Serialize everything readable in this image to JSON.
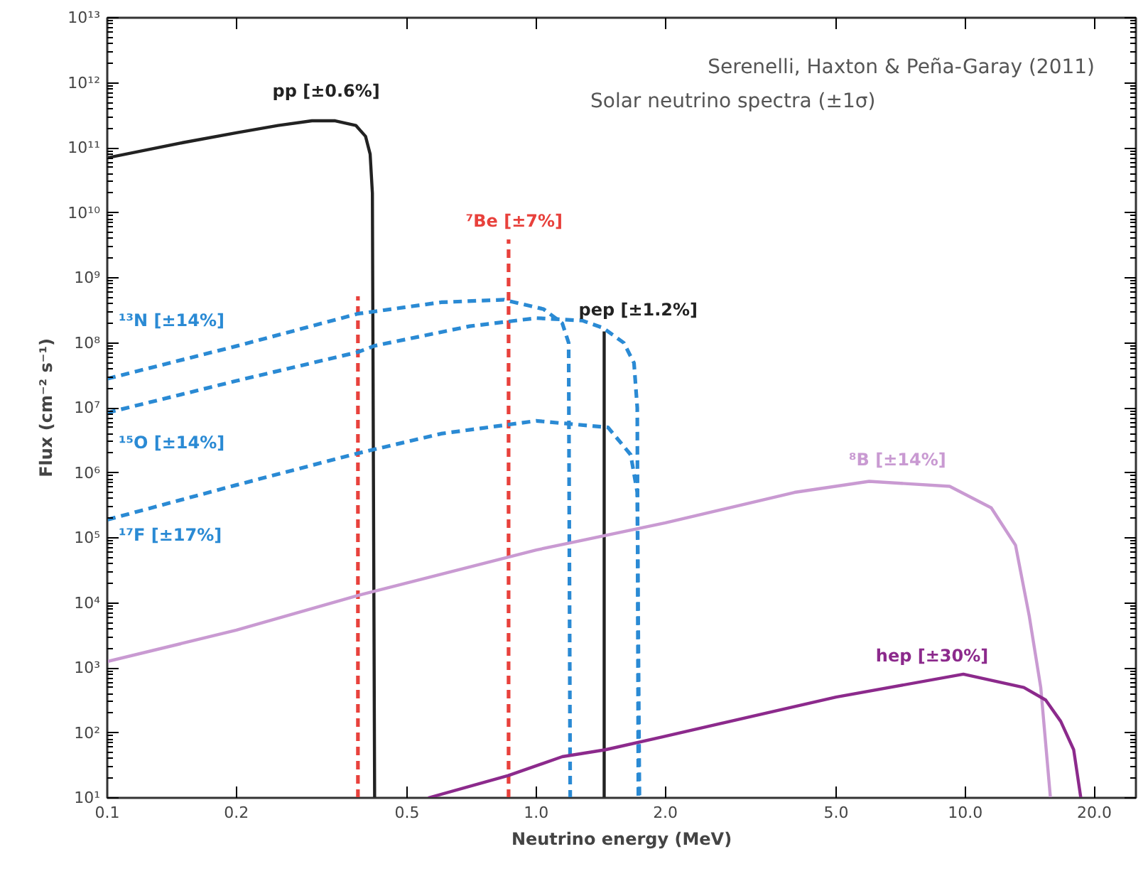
{
  "chart_data": {
    "type": "line",
    "title": "Serenelli, Haxton & Peña-Garay (2011)",
    "subtitle": "Solar neutrino spectra (±1σ)",
    "xlabel": "Neutrino energy (MeV)",
    "ylabel": "Flux (cm⁻² s⁻¹)",
    "log": "xy",
    "grid": false,
    "marker": "none",
    "xlim": [
      0.1,
      25
    ],
    "xticks": [
      {
        "value": 0.1,
        "label": "0.1"
      },
      {
        "value": 0.2,
        "label": "0.2"
      },
      {
        "value": 0.5,
        "label": "0.5"
      },
      {
        "value": 1,
        "label": "1.0"
      },
      {
        "value": 2,
        "label": "2.0"
      },
      {
        "value": 5,
        "label": "5.0"
      },
      {
        "value": 10,
        "label": "10.0"
      },
      {
        "value": 20,
        "label": "20.0"
      }
    ],
    "ylim": [
      10,
      10000000000000.0
    ],
    "yticks": [
      {
        "value": 10,
        "label": "10¹"
      },
      {
        "value": 100,
        "label": "10²"
      },
      {
        "value": 1000,
        "label": "10³"
      },
      {
        "value": 10000,
        "label": "10⁴"
      },
      {
        "value": 100000,
        "label": "10⁵"
      },
      {
        "value": 1000000,
        "label": "10⁶"
      },
      {
        "value": 10000000,
        "label": "10⁷"
      },
      {
        "value": 100000000,
        "label": "10⁸"
      },
      {
        "value": 1000000000,
        "label": "10⁹"
      },
      {
        "value": 10000000000,
        "label": "10¹⁰"
      },
      {
        "value": 100000000000,
        "label": "10¹¹"
      },
      {
        "value": 1000000000000,
        "label": "10¹²"
      },
      {
        "value": 10000000000000,
        "label": "10¹³"
      }
    ],
    "series": [
      {
        "name": "pp [±0.6%]",
        "color": "#222222",
        "line_style": "solid",
        "x": [
          0.1,
          0.15,
          0.2,
          0.25,
          0.3,
          0.34,
          0.38,
          0.4,
          0.41,
          0.415,
          0.42
        ],
        "values": [
          70000000000.0,
          120000000000.0,
          170000000000.0,
          220000000000.0,
          260000000000.0,
          260000000000.0,
          220000000000.0,
          150000000000.0,
          80000000000.0,
          20000000000.0,
          10
        ]
      },
      {
        "name": "⁷Be [±7%]",
        "color": "#e8413c",
        "line_style": "dashed",
        "x": [
          0.384,
          0.384,
          null,
          0.862,
          0.862
        ],
        "values": [
          10,
          520000000.0,
          null,
          10,
          3900000000.0
        ]
      },
      {
        "name": "pep [±1.2%]",
        "color": "#222222",
        "line_style": "solid",
        "x": [
          1.44,
          1.44
        ],
        "values": [
          10,
          150000000.0
        ]
      },
      {
        "name": "¹³N [±14%]",
        "color": "#2a8ad4",
        "line_style": "dashed",
        "x": [
          0.1,
          0.2,
          0.384,
          0.6,
          0.84,
          1.04,
          1.15,
          1.19,
          1.2
        ],
        "values": [
          28000000.0,
          89000000.0,
          280000000.0,
          420000000.0,
          460000000.0,
          330000000.0,
          200000000.0,
          100000000.0,
          10
        ]
      },
      {
        "name": "¹⁵O [±14%]",
        "color": "#2a8ad4",
        "line_style": "dashed",
        "x": [
          0.1,
          0.2,
          0.384,
          0.42,
          0.7,
          1.0,
          1.28,
          1.43,
          1.6,
          1.69,
          1.72,
          1.73
        ],
        "values": [
          8400000.0,
          26000000.0,
          72000000.0,
          90000000.0,
          180000000.0,
          240000000.0,
          220000000.0,
          170000000.0,
          100000000.0,
          49000000.0,
          10000000.0,
          10
        ]
      },
      {
        "name": "¹⁷F [±17%]",
        "color": "#2a8ad4",
        "line_style": "dashed",
        "x": [
          0.1,
          0.2,
          0.384,
          0.6,
          1.0,
          1.47,
          1.66,
          1.72,
          1.74
        ],
        "values": [
          190000.0,
          650000.0,
          2000000.0,
          4000000.0,
          6300000.0,
          5000000.0,
          1900000.0,
          500000.0,
          10
        ]
      },
      {
        "name": "⁸B [±14%]",
        "color": "#c99ad2",
        "line_style": "solid",
        "x": [
          0.1,
          0.2,
          0.384,
          1.0,
          2.0,
          4.0,
          5.97,
          9.2,
          11.5,
          13.1,
          14.1,
          15.0,
          15.8
        ],
        "values": [
          1250,
          3800,
          13000,
          65000,
          170000.0,
          500000.0,
          740000.0,
          620000.0,
          290000.0,
          77000,
          6300,
          500,
          10
        ]
      },
      {
        "name": "hep [±30%]",
        "color": "#8c2a8c",
        "line_style": "solid",
        "x": [
          0.56,
          0.86,
          1.15,
          1.45,
          1.97,
          5.0,
          9.9,
          13.7,
          15.4,
          16.7,
          17.9,
          18.6
        ],
        "values": [
          10,
          22,
          43,
          55,
          87,
          355,
          800,
          500,
          320,
          150,
          55,
          10
        ]
      }
    ]
  }
}
